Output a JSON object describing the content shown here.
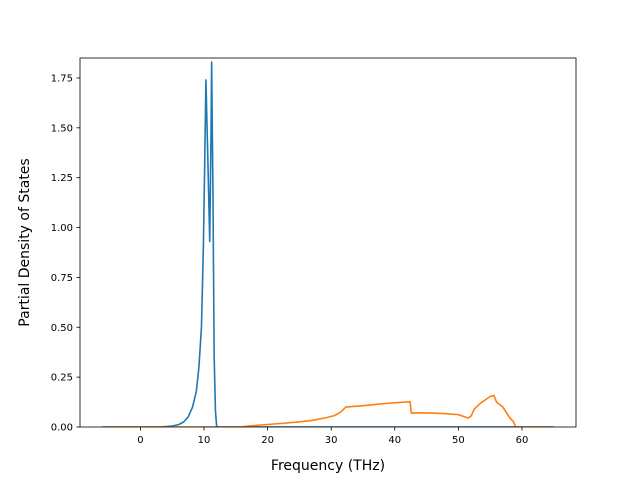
{
  "chart_data": {
    "type": "line",
    "xlabel": "Frequency (THz)",
    "ylabel": "Partial Density of States",
    "xlim": [
      -9.5,
      68.5
    ],
    "ylim": [
      0.0,
      1.85
    ],
    "xticks": [
      0,
      10,
      20,
      30,
      40,
      50,
      60
    ],
    "yticks": [
      0.0,
      0.25,
      0.5,
      0.75,
      1.0,
      1.25,
      1.5,
      1.75
    ],
    "ytick_labels": [
      "0.00",
      "0.25",
      "0.50",
      "0.75",
      "1.00",
      "1.25",
      "1.50",
      "1.75"
    ],
    "grid": false,
    "legend": false,
    "series": [
      {
        "color": "#1f77b4",
        "points": [
          [
            -6,
            0
          ],
          [
            0,
            0
          ],
          [
            3,
            0.0
          ],
          [
            4,
            0.002
          ],
          [
            5,
            0.005
          ],
          [
            6,
            0.012
          ],
          [
            6.8,
            0.025
          ],
          [
            7.5,
            0.05
          ],
          [
            8.2,
            0.1
          ],
          [
            8.8,
            0.18
          ],
          [
            9.2,
            0.3
          ],
          [
            9.6,
            0.5
          ],
          [
            9.9,
            0.9
          ],
          [
            10.1,
            1.3
          ],
          [
            10.3,
            1.74
          ],
          [
            10.6,
            1.35
          ],
          [
            10.9,
            0.93
          ],
          [
            11.1,
            1.45
          ],
          [
            11.2,
            1.83
          ],
          [
            11.4,
            1.2
          ],
          [
            11.6,
            0.35
          ],
          [
            11.8,
            0.08
          ],
          [
            12.0,
            0.0
          ],
          [
            20,
            0
          ],
          [
            30,
            0
          ],
          [
            40,
            0
          ],
          [
            50,
            0
          ],
          [
            60,
            0
          ],
          [
            65,
            0
          ]
        ]
      },
      {
        "color": "#ff7f0e",
        "points": [
          [
            -6,
            0
          ],
          [
            15.7,
            0
          ],
          [
            17,
            0.005
          ],
          [
            19,
            0.01
          ],
          [
            21,
            0.015
          ],
          [
            23,
            0.02
          ],
          [
            25,
            0.026
          ],
          [
            27,
            0.033
          ],
          [
            29,
            0.045
          ],
          [
            30.5,
            0.057
          ],
          [
            31.5,
            0.075
          ],
          [
            32.3,
            0.1
          ],
          [
            33,
            0.102
          ],
          [
            35,
            0.107
          ],
          [
            37,
            0.113
          ],
          [
            39,
            0.119
          ],
          [
            41,
            0.124
          ],
          [
            42.4,
            0.127
          ],
          [
            42.6,
            0.07
          ],
          [
            44,
            0.071
          ],
          [
            46,
            0.07
          ],
          [
            48,
            0.067
          ],
          [
            50,
            0.062
          ],
          [
            51.5,
            0.045
          ],
          [
            52,
            0.055
          ],
          [
            52.5,
            0.09
          ],
          [
            53.5,
            0.12
          ],
          [
            55,
            0.153
          ],
          [
            55.6,
            0.158
          ],
          [
            56,
            0.125
          ],
          [
            57,
            0.1
          ],
          [
            58,
            0.05
          ],
          [
            58.7,
            0.025
          ],
          [
            59,
            0.0
          ],
          [
            65,
            0
          ]
        ]
      }
    ]
  }
}
